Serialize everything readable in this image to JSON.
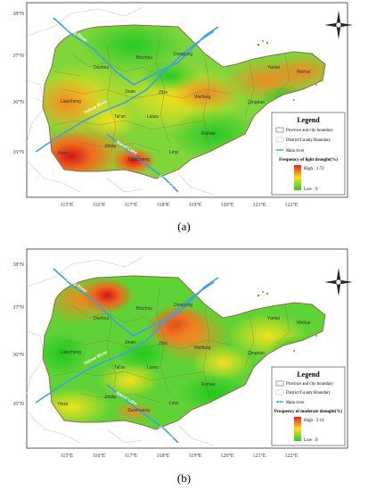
{
  "panels": [
    {
      "id": "a",
      "caption": "(a)",
      "lat_ticks": [
        "38°N",
        "37°N",
        "36°N",
        "35°N"
      ],
      "lon_ticks": [
        "115°E",
        "116°E",
        "117°E",
        "118°E",
        "119°E",
        "120°E",
        "121°E",
        "122°E"
      ],
      "cities": [
        "Dezhou",
        "Binzhou",
        "Dongying",
        "Yantai",
        "Weihai",
        "Liaocheng",
        "Jinan",
        "Zibo",
        "Weifang",
        "Qingdao",
        "Tai'an",
        "Laiwu",
        "Rizhao",
        "Heze",
        "Jining",
        "Zaozhuang",
        "Linyi"
      ],
      "rivers": [
        "Jiyang River",
        "Yellow River",
        "Nansi Lake",
        "Grand Canal"
      ],
      "legend": {
        "title": "Legend",
        "items": [
          "Province and city boundary",
          "District/County Boundary",
          "Main river"
        ],
        "ramp_title": "Frequency of light drought(%)",
        "high": "High : 1.72",
        "low": "Low : 0"
      }
    },
    {
      "id": "b",
      "caption": "(b)",
      "lat_ticks": [
        "38°N",
        "37°N",
        "36°N",
        "35°N"
      ],
      "lon_ticks": [
        "115°E",
        "116°E",
        "117°E",
        "118°E",
        "119°E",
        "120°E",
        "121°E",
        "122°E"
      ],
      "cities": [
        "Dezhou",
        "Binzhou",
        "Dongying",
        "Yantai",
        "Weihai",
        "Liaocheng",
        "Jinan",
        "Zibo",
        "Weifang",
        "Qingdao",
        "Tai'an",
        "Laiwu",
        "Rizhao",
        "Heze",
        "Jining",
        "Zaozhuang",
        "Linyi"
      ],
      "rivers": [
        "Jiyang River",
        "Yellow River",
        "Nansi Lake",
        "Grand Canal"
      ],
      "legend": {
        "title": "Legend",
        "items": [
          "Province and city boundary",
          "District/County Boundary",
          "Main river"
        ],
        "ramp_title": "Frequency of moderate drought(%)",
        "high": "High : 2.14",
        "low": "Low : 0"
      }
    }
  ],
  "colors": {
    "high": "#e8201c",
    "mid": "#f7e11a",
    "low": "#2bcc2a",
    "river": "#3aa0e6",
    "boundary": "#8b6c47",
    "background_boundary": "#c8c8c8"
  }
}
